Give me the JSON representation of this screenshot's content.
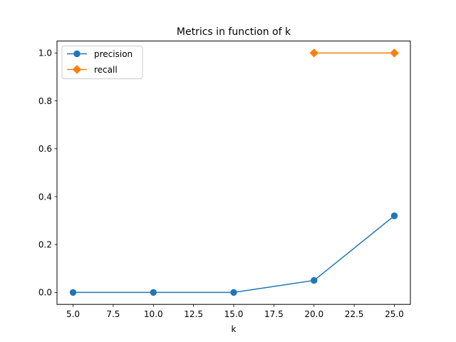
{
  "chart_data": {
    "type": "line",
    "title": "Metrics in function of k",
    "xlabel": "k",
    "ylabel": "",
    "xlim": [
      4.0,
      26.0
    ],
    "ylim": [
      -0.05,
      1.05
    ],
    "x_ticks": [
      5.0,
      7.5,
      10.0,
      12.5,
      15.0,
      17.5,
      20.0,
      22.5,
      25.0
    ],
    "x_tick_labels": [
      "5.0",
      "7.5",
      "10.0",
      "12.5",
      "15.0",
      "17.5",
      "20.0",
      "22.5",
      "25.0"
    ],
    "y_ticks": [
      0.0,
      0.2,
      0.4,
      0.6,
      0.8,
      1.0
    ],
    "y_tick_labels": [
      "0.0",
      "0.2",
      "0.4",
      "0.6",
      "0.8",
      "1.0"
    ],
    "grid": false,
    "legend_position": "top-left",
    "series": [
      {
        "name": "precision",
        "color": "#1f77b4",
        "marker": "circle",
        "x": [
          5,
          10,
          15,
          20,
          25
        ],
        "y": [
          0.0,
          0.0,
          0.0,
          0.05,
          0.32
        ]
      },
      {
        "name": "recall",
        "color": "#ff7f0e",
        "marker": "diamond",
        "x": [
          20,
          25
        ],
        "y": [
          1.0,
          1.0
        ]
      }
    ]
  }
}
